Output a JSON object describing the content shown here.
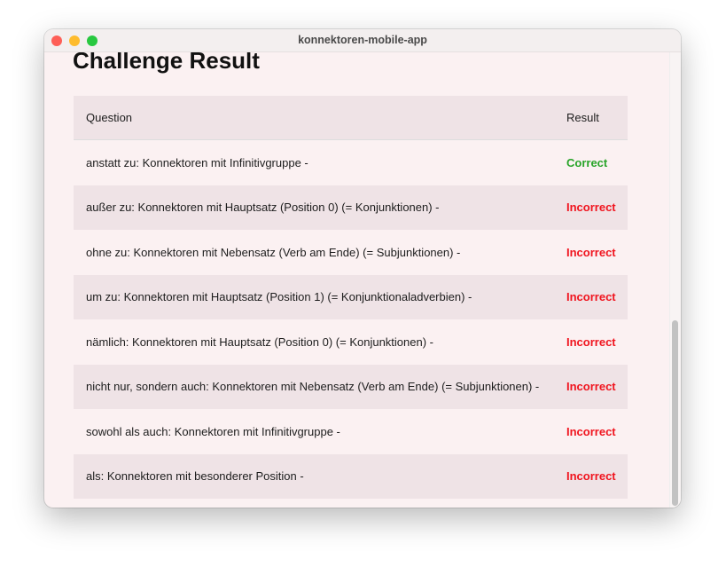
{
  "window": {
    "title": "konnektoren-mobile-app"
  },
  "page": {
    "title": "Challenge Result"
  },
  "table": {
    "headers": [
      "Question",
      "Result"
    ],
    "rows": [
      {
        "question": "anstatt zu: Konnektoren mit Infinitivgruppe -",
        "result": "Correct"
      },
      {
        "question": "außer zu: Konnektoren mit Hauptsatz (Position 0) (= Konjunktionen) -",
        "result": "Incorrect"
      },
      {
        "question": "ohne zu: Konnektoren mit Nebensatz (Verb am Ende) (= Subjunktionen) -",
        "result": "Incorrect"
      },
      {
        "question": "um zu: Konnektoren mit Hauptsatz (Position 1) (= Konjunktionaladverbien) -",
        "result": "Incorrect"
      },
      {
        "question": "nämlich: Konnektoren mit Hauptsatz (Position 0) (= Konjunktionen) -",
        "result": "Incorrect"
      },
      {
        "question": "nicht nur, sondern auch: Konnektoren mit Nebensatz (Verb am Ende) (= Subjunktionen) -",
        "result": "Incorrect"
      },
      {
        "question": "sowohl als auch: Konnektoren mit Infinitivgruppe -",
        "result": "Incorrect"
      },
      {
        "question": "als: Konnektoren mit besonderer Position -",
        "result": "Incorrect"
      }
    ]
  },
  "colors": {
    "correct": "#28a428",
    "incorrect": "#f0141e"
  }
}
